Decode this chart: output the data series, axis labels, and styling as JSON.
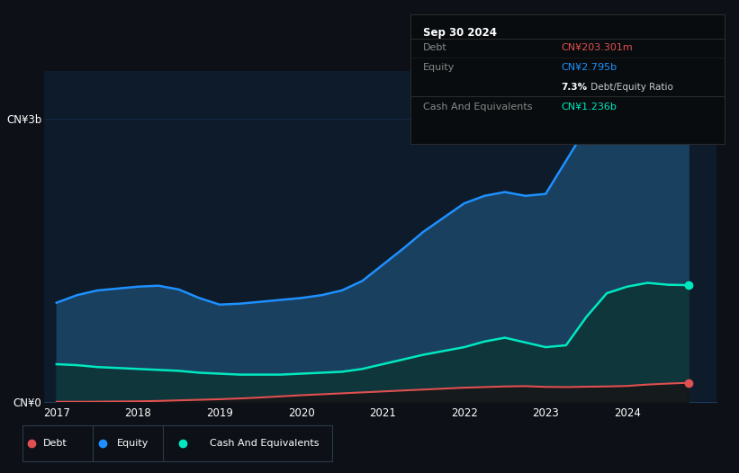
{
  "background_color": "#0d1117",
  "plot_bg_color": "#0d1b2a",
  "grid_color": "#1a3050",
  "years": [
    2017.0,
    2017.25,
    2017.5,
    2017.75,
    2018.0,
    2018.25,
    2018.5,
    2018.75,
    2019.0,
    2019.25,
    2019.5,
    2019.75,
    2020.0,
    2020.25,
    2020.5,
    2020.75,
    2021.0,
    2021.25,
    2021.5,
    2021.75,
    2022.0,
    2022.25,
    2022.5,
    2022.75,
    2023.0,
    2023.25,
    2023.5,
    2023.75,
    2024.0,
    2024.25,
    2024.5,
    2024.75
  ],
  "equity": [
    1.05,
    1.13,
    1.18,
    1.2,
    1.22,
    1.23,
    1.19,
    1.1,
    1.03,
    1.04,
    1.06,
    1.08,
    1.1,
    1.13,
    1.18,
    1.28,
    1.45,
    1.62,
    1.8,
    1.95,
    2.1,
    2.18,
    2.22,
    2.18,
    2.2,
    2.55,
    2.9,
    3.05,
    3.1,
    3.12,
    3.02,
    2.795
  ],
  "debt": [
    0.003,
    0.003,
    0.004,
    0.006,
    0.008,
    0.012,
    0.018,
    0.024,
    0.03,
    0.038,
    0.048,
    0.06,
    0.072,
    0.082,
    0.092,
    0.102,
    0.112,
    0.122,
    0.132,
    0.142,
    0.152,
    0.158,
    0.165,
    0.168,
    0.16,
    0.158,
    0.162,
    0.165,
    0.17,
    0.185,
    0.195,
    0.2033
  ],
  "cash": [
    0.4,
    0.39,
    0.37,
    0.36,
    0.35,
    0.34,
    0.33,
    0.31,
    0.3,
    0.29,
    0.29,
    0.29,
    0.3,
    0.31,
    0.32,
    0.35,
    0.4,
    0.45,
    0.5,
    0.54,
    0.58,
    0.64,
    0.68,
    0.63,
    0.58,
    0.6,
    0.9,
    1.15,
    1.22,
    1.26,
    1.24,
    1.236
  ],
  "equity_color": "#1e90ff",
  "debt_color": "#e05050",
  "cash_color": "#00e8c0",
  "equity_fill": "#1a4060",
  "cash_fill": "#0d3535",
  "ylim": [
    0,
    3.5
  ],
  "ytick_vals": [
    0,
    3.0
  ],
  "ytick_labels": [
    "CN¥0",
    "CN¥3b"
  ],
  "xtick_vals": [
    2017,
    2018,
    2019,
    2020,
    2021,
    2022,
    2023,
    2024
  ],
  "xlim": [
    2016.85,
    2025.1
  ],
  "tooltip_date": "Sep 30 2024",
  "tooltip_debt_label": "Debt",
  "tooltip_debt_val": "CN¥203.301m",
  "tooltip_equity_label": "Equity",
  "tooltip_equity_val": "CN¥2.795b",
  "tooltip_ratio_bold": "7.3%",
  "tooltip_ratio_rest": " Debt/Equity Ratio",
  "tooltip_cash_label": "Cash And Equivalents",
  "tooltip_cash_val": "CN¥1.236b",
  "legend_labels": [
    "Debt",
    "Equity",
    "Cash And Equivalents"
  ],
  "legend_colors": [
    "#e05050",
    "#1e90ff",
    "#00e8c0"
  ]
}
